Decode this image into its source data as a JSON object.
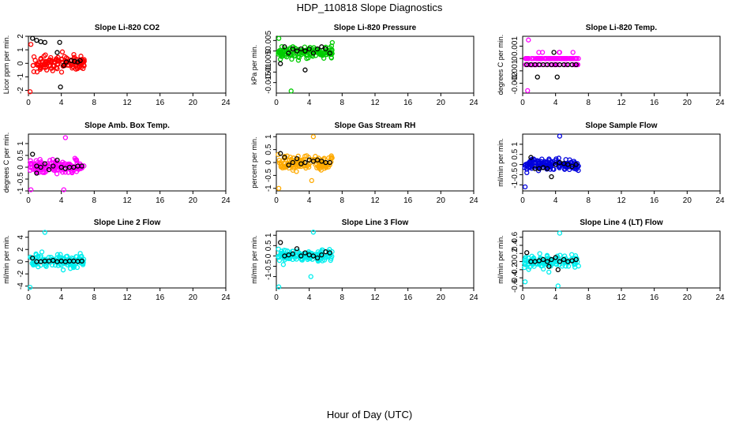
{
  "figure": {
    "title": "HDP_110818  Slope Diagnostics",
    "xlabel": "Hour of Day (UTC)"
  },
  "chart_data": [
    {
      "type": "scatter",
      "title": "Slope Li-820 CO2",
      "ylabel": "Licor ppm per min.",
      "xlim": [
        0,
        24
      ],
      "ylim": [
        -2.2,
        2
      ],
      "xticks": [
        0,
        4,
        8,
        12,
        16,
        20,
        24
      ],
      "yticks": [
        -2,
        -1,
        0,
        1,
        2
      ],
      "color": "#ff0000",
      "seed": 11,
      "xmax": 6.8,
      "mean_points": [
        [
          0.5,
          1.85
        ],
        [
          1.0,
          1.7
        ],
        [
          1.5,
          1.6
        ],
        [
          2.0,
          1.55
        ],
        [
          3.8,
          1.55
        ],
        [
          3.5,
          0.8
        ],
        [
          4.3,
          -0.15
        ],
        [
          4.6,
          0.1
        ],
        [
          5.2,
          0.2
        ],
        [
          5.6,
          0.15
        ],
        [
          6.0,
          0.1
        ],
        [
          6.3,
          0.2
        ],
        [
          3.9,
          -1.75
        ]
      ],
      "outliers": [
        [
          0.2,
          -2.1
        ],
        [
          0.3,
          1.4
        ]
      ]
    },
    {
      "type": "scatter",
      "title": "Slope Li-820 Pressure",
      "ylabel": "kPa per min.",
      "xlim": [
        0,
        24
      ],
      "ylim": [
        -0.02,
        0.007
      ],
      "xticks": [
        0,
        4,
        8,
        12,
        16,
        20,
        24
      ],
      "yticks": [
        -0.015,
        -0.01,
        -0.005,
        0,
        0.005
      ],
      "color": "#00cc00",
      "seed": 22,
      "xmax": 6.8,
      "mean_points": [
        [
          0.5,
          -0.006
        ],
        [
          1.0,
          0.002
        ],
        [
          1.5,
          -0.001
        ],
        [
          2.0,
          0.001
        ],
        [
          2.5,
          0.0
        ],
        [
          3.0,
          0.001
        ],
        [
          3.5,
          0.0
        ],
        [
          4.0,
          0.001
        ],
        [
          4.5,
          -0.001
        ],
        [
          5.0,
          0.001
        ],
        [
          5.5,
          0.002
        ],
        [
          6.0,
          0.001
        ],
        [
          6.5,
          -0.001
        ],
        [
          3.5,
          -0.009
        ]
      ],
      "outliers": [
        [
          0.3,
          0.006
        ],
        [
          1.8,
          -0.019
        ],
        [
          6.8,
          0.004
        ]
      ]
    },
    {
      "type": "scatter",
      "title": "Slope Li-820 Temp.",
      "ylabel": "degrees C per min.",
      "xlim": [
        0,
        24
      ],
      "ylim": [
        -0.0028,
        0.0018
      ],
      "xticks": [
        0,
        4,
        8,
        12,
        16,
        20,
        24
      ],
      "yticks": [
        -0.002,
        -0.001,
        0,
        0.001
      ],
      "color": "#ff00ff",
      "seed": 33,
      "xmax": 6.8,
      "discrete": 0.0005,
      "mean_points": [
        [
          0.5,
          -0.0005
        ],
        [
          1.0,
          -0.0005
        ],
        [
          1.5,
          -0.0005
        ],
        [
          2.0,
          -0.0005
        ],
        [
          2.5,
          -0.0005
        ],
        [
          3.0,
          -0.0005
        ],
        [
          3.5,
          -0.0005
        ],
        [
          4.0,
          -0.0005
        ],
        [
          4.5,
          -0.0005
        ],
        [
          5.0,
          -0.0005
        ],
        [
          5.5,
          -0.0005
        ],
        [
          6.0,
          -0.0005
        ],
        [
          6.5,
          -0.0005
        ],
        [
          1.8,
          -0.0015
        ],
        [
          3.8,
          0.0005
        ],
        [
          4.2,
          -0.0015
        ]
      ],
      "outliers": [
        [
          0.7,
          0.0015
        ],
        [
          0.6,
          -0.0026
        ]
      ]
    },
    {
      "type": "scatter",
      "title": "Slope Amb. Box Temp.",
      "ylabel": "degrees C per min.",
      "xlim": [
        0,
        24
      ],
      "ylim": [
        -1.0,
        1.4
      ],
      "xticks": [
        0,
        4,
        8,
        12,
        16,
        20,
        24
      ],
      "yticks": [
        -1.0,
        -0.5,
        0,
        0.5,
        1.0
      ],
      "color": "#ff00ff",
      "seed": 44,
      "xmax": 6.8,
      "mean_points": [
        [
          0.5,
          0.55
        ],
        [
          1.0,
          0.05
        ],
        [
          1.5,
          0.0
        ],
        [
          2.0,
          0.15
        ],
        [
          2.5,
          -0.1
        ],
        [
          3.0,
          0.05
        ],
        [
          3.5,
          0.3
        ],
        [
          4.0,
          0.0
        ],
        [
          4.5,
          -0.05
        ],
        [
          5.0,
          0.0
        ],
        [
          5.5,
          0.0
        ],
        [
          6.0,
          0.05
        ],
        [
          6.5,
          0.05
        ],
        [
          1.0,
          -0.25
        ]
      ],
      "outliers": [
        [
          0.3,
          -0.95
        ],
        [
          4.5,
          1.25
        ],
        [
          4.3,
          -0.95
        ]
      ]
    },
    {
      "type": "scatter",
      "title": "Slope Gas Stream RH",
      "ylabel": "percent per min.",
      "xlim": [
        0,
        24
      ],
      "ylim": [
        -1.1,
        1.1
      ],
      "xticks": [
        0,
        4,
        8,
        12,
        16,
        20,
        24
      ],
      "yticks": [
        -1.0,
        -0.5,
        0,
        0.5,
        1.0
      ],
      "color": "#ffaa00",
      "seed": 55,
      "xmax": 6.8,
      "mean_points": [
        [
          0.5,
          0.35
        ],
        [
          1.0,
          0.2
        ],
        [
          1.5,
          -0.1
        ],
        [
          2.0,
          0.0
        ],
        [
          2.5,
          0.15
        ],
        [
          3.0,
          -0.05
        ],
        [
          3.5,
          0.0
        ],
        [
          4.0,
          0.1
        ],
        [
          4.5,
          0.05
        ],
        [
          5.0,
          0.1
        ],
        [
          5.5,
          0.05
        ],
        [
          6.0,
          0.0
        ],
        [
          6.5,
          0.0
        ]
      ],
      "outliers": [
        [
          0.3,
          -1.0
        ],
        [
          4.5,
          1.0
        ],
        [
          4.3,
          -0.7
        ]
      ]
    },
    {
      "type": "scatter",
      "title": "Slope Sample Flow",
      "ylabel": "ml/min per min.",
      "xlim": [
        0,
        24
      ],
      "ylim": [
        -1.3,
        1.5
      ],
      "xticks": [
        0,
        4,
        8,
        12,
        16,
        20,
        24
      ],
      "yticks": [
        -1.0,
        -0.5,
        0,
        0.5,
        1.0
      ],
      "color": "#0000dd",
      "seed": 66,
      "xmax": 6.8,
      "mean_points": [
        [
          1.0,
          0.35
        ],
        [
          1.5,
          -0.2
        ],
        [
          2.0,
          -0.2
        ],
        [
          2.5,
          -0.15
        ],
        [
          3.0,
          -0.2
        ],
        [
          3.5,
          -0.6
        ],
        [
          4.0,
          0.0
        ],
        [
          4.5,
          0.1
        ],
        [
          5.0,
          0.05
        ],
        [
          5.5,
          0.0
        ],
        [
          6.0,
          -0.1
        ],
        [
          6.5,
          0.0
        ]
      ],
      "outliers": [
        [
          4.5,
          1.4
        ],
        [
          0.3,
          -1.1
        ]
      ]
    },
    {
      "type": "scatter",
      "title": "Slope Line 2 Flow",
      "ylabel": "ml/min per min.",
      "xlim": [
        0,
        24
      ],
      "ylim": [
        -4.3,
        5
      ],
      "xticks": [
        0,
        4,
        8,
        12,
        16,
        20,
        24
      ],
      "yticks": [
        -4,
        -2,
        0,
        2,
        4
      ],
      "color": "#00eeee",
      "seed": 77,
      "xmax": 6.8,
      "mean_points": [
        [
          0.5,
          0.6
        ],
        [
          1.0,
          0.0
        ],
        [
          1.5,
          0.0
        ],
        [
          2.0,
          0.1
        ],
        [
          2.5,
          0.1
        ],
        [
          3.0,
          0.2
        ],
        [
          3.5,
          0.0
        ],
        [
          4.0,
          0.1
        ],
        [
          4.5,
          0.0
        ],
        [
          5.0,
          0.1
        ],
        [
          5.5,
          0.1
        ],
        [
          6.0,
          0.05
        ],
        [
          6.5,
          0.1
        ]
      ],
      "outliers": [
        [
          2.0,
          4.8
        ],
        [
          0.2,
          -4.2
        ]
      ]
    },
    {
      "type": "scatter",
      "title": "Slope Line 3 Flow",
      "ylabel": "ml/min per min.",
      "xlim": [
        0,
        24
      ],
      "ylim": [
        -1.55,
        1.2
      ],
      "xticks": [
        0,
        4,
        8,
        12,
        16,
        20,
        24
      ],
      "yticks": [
        -1.0,
        -0.5,
        0,
        0.5,
        1.0
      ],
      "color": "#00eeee",
      "seed": 88,
      "xmax": 6.8,
      "mean_points": [
        [
          0.5,
          0.65
        ],
        [
          1.0,
          0.0
        ],
        [
          1.5,
          0.05
        ],
        [
          2.0,
          0.1
        ],
        [
          2.5,
          0.35
        ],
        [
          3.0,
          0.0
        ],
        [
          3.5,
          0.15
        ],
        [
          4.0,
          0.05
        ],
        [
          4.5,
          0.0
        ],
        [
          5.0,
          -0.1
        ],
        [
          5.5,
          0.05
        ],
        [
          6.0,
          0.2
        ],
        [
          6.5,
          0.15
        ]
      ],
      "outliers": [
        [
          4.5,
          1.15
        ],
        [
          0.3,
          -1.5
        ],
        [
          4.2,
          -1.0
        ]
      ]
    },
    {
      "type": "scatter",
      "title": "Slope Line 4 (LT) Flow",
      "ylabel": "ml/min per min.",
      "xlim": [
        0,
        24
      ],
      "ylim": [
        -0.65,
        0.75
      ],
      "xticks": [
        0,
        4,
        8,
        12,
        16,
        20,
        24
      ],
      "yticks": [
        -0.6,
        -0.4,
        -0.2,
        0,
        0.2,
        0.4,
        0.6
      ],
      "color": "#00eeee",
      "seed": 99,
      "xmax": 6.8,
      "mean_points": [
        [
          0.5,
          0.22
        ],
        [
          1.0,
          0.0
        ],
        [
          1.5,
          0.0
        ],
        [
          2.0,
          0.02
        ],
        [
          2.5,
          0.05
        ],
        [
          3.0,
          0.0
        ],
        [
          3.5,
          0.05
        ],
        [
          4.0,
          0.1
        ],
        [
          4.5,
          0.0
        ],
        [
          5.0,
          0.05
        ],
        [
          5.5,
          0.0
        ],
        [
          6.0,
          0.02
        ],
        [
          6.5,
          0.05
        ],
        [
          3.2,
          -0.12
        ],
        [
          4.3,
          -0.2
        ]
      ],
      "outliers": [
        [
          4.5,
          0.7
        ],
        [
          4.3,
          -0.6
        ],
        [
          0.3,
          -0.5
        ]
      ]
    }
  ]
}
